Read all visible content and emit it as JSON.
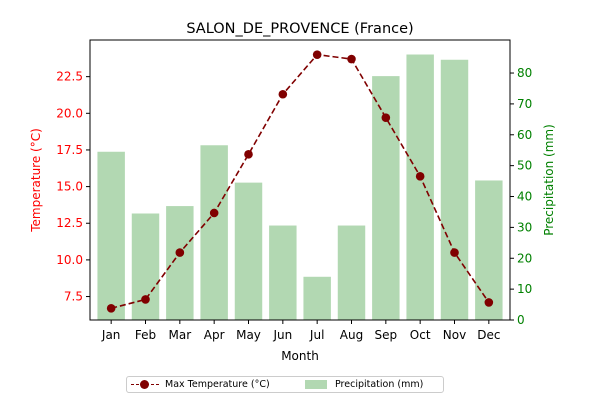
{
  "chart_data": {
    "type": "bar+line",
    "title": "SALON_DE_PROVENCE (France)",
    "xlabel": "Month",
    "categories": [
      "Jan",
      "Feb",
      "Mar",
      "Apr",
      "May",
      "Jun",
      "Jul",
      "Aug",
      "Sep",
      "Oct",
      "Nov",
      "Dec"
    ],
    "temperature": {
      "name": "Max Temperature (°C)",
      "axis_label": "Temperature (°C)",
      "color": "#800000",
      "axis_color": "#ff0000",
      "values": [
        6.7,
        7.3,
        10.5,
        13.2,
        17.2,
        21.3,
        24.0,
        23.7,
        19.7,
        15.7,
        10.5,
        7.1
      ],
      "ylim": [
        5.9,
        25.0
      ],
      "ticks": [
        "7.5",
        "10.0",
        "12.5",
        "15.0",
        "17.5",
        "20.0",
        "22.5"
      ]
    },
    "precipitation": {
      "name": "Precipitation (mm)",
      "axis_label": "Precipitation (mm)",
      "color": "#b2d8b2",
      "axis_color": "#008000",
      "values": [
        54.5,
        34.5,
        36.9,
        56.6,
        44.5,
        30.6,
        14.0,
        30.6,
        79.0,
        86.0,
        84.3,
        45.2
      ],
      "ylim": [
        0,
        90.7
      ],
      "ticks": [
        "0",
        "10",
        "20",
        "30",
        "40",
        "50",
        "60",
        "70",
        "80"
      ]
    },
    "legend_position": "bottom-center",
    "grid": false
  }
}
